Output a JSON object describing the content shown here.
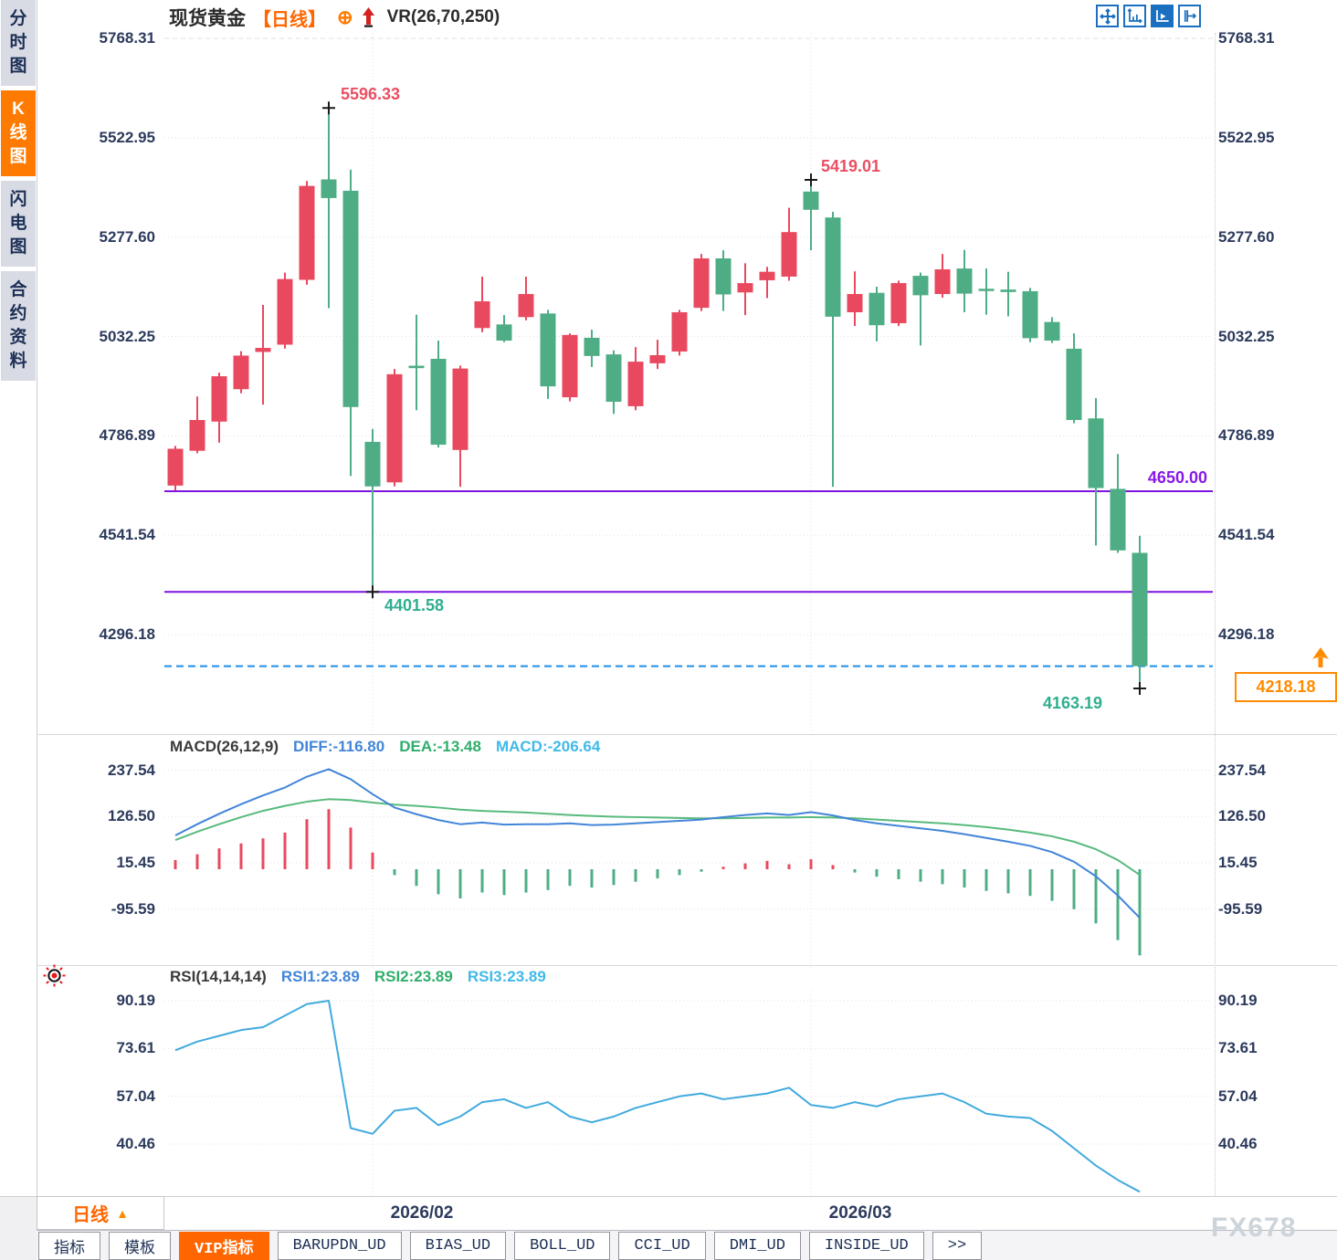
{
  "sidebar": {
    "items": [
      {
        "label": "分时图",
        "active": false
      },
      {
        "label": "K线图",
        "active": true
      },
      {
        "label": "闪电图",
        "active": false
      },
      {
        "label": "合约资料",
        "active": false
      }
    ]
  },
  "header": {
    "symbol": "现货黄金",
    "period_tag": "【日线】",
    "plus_icon": "⊕",
    "indicator": "VR(26,70,250)"
  },
  "toolbar": {
    "icons": [
      "pan-icon",
      "axis-scale-icon",
      "axis-autoscroll-icon",
      "shift-chart-icon"
    ],
    "active_index": 2
  },
  "annotations": {
    "high1": "5596.33",
    "high2": "5419.01",
    "low_mid": "4401.58",
    "low_final": "4163.19",
    "hline_upper": "4650.00",
    "price_badge": "4218.18"
  },
  "macd_header": {
    "name": "MACD(26,12,9)",
    "diff_label": "DIFF:-116.80",
    "dea_label": "DEA:-13.48",
    "macd_label": "MACD:-206.64"
  },
  "rsi_header": {
    "name": "RSI(14,14,14)",
    "rsi1_label": "RSI1:23.89",
    "rsi2_label": "RSI2:23.89",
    "rsi3_label": "RSI3:23.89"
  },
  "axes": {
    "main": [
      "5768.31",
      "5522.95",
      "5277.60",
      "5032.25",
      "4786.89",
      "4541.54",
      "4296.18"
    ],
    "macd": [
      "237.54",
      "126.50",
      "15.45",
      "-95.59"
    ],
    "rsi": [
      "90.19",
      "73.61",
      "57.04",
      "40.46"
    ]
  },
  "bottom": {
    "period_label": "日线",
    "period_arrow": "▲",
    "date_labels": [
      "2026/02",
      "2026/03"
    ],
    "tabs": [
      {
        "label": "指标",
        "active": false
      },
      {
        "label": "模板",
        "active": false
      },
      {
        "label": "VIP指标",
        "active": true
      },
      {
        "label": "BARUPDN_UD",
        "active": false
      },
      {
        "label": "BIAS_UD",
        "active": false
      },
      {
        "label": "BOLL_UD",
        "active": false
      },
      {
        "label": "CCI_UD",
        "active": false
      },
      {
        "label": "DMI_UD",
        "active": false
      },
      {
        "label": "INSIDE_UD",
        "active": false
      },
      {
        "label": ">>",
        "active": false
      }
    ]
  },
  "watermark": "FX678",
  "colors": {
    "up": "#e8495f",
    "down": "#4fad85",
    "support_line": "#7d14e0",
    "current_price_line": "#1d8fe8",
    "accent": "#ff6600",
    "diff_line": "#4285d8",
    "dea_line": "#58ba7d",
    "macd_text": "#41b9e8",
    "rsi_line": "#41aade",
    "annotation_red": "#ea4f63",
    "annotation_green": "#2fae8f",
    "badge": "#ff8b00",
    "grid": "#dfe0e6"
  },
  "chart_data": {
    "type": "candlestick",
    "panels": [
      "price",
      "MACD(26,12,9)",
      "RSI(14,14,14)"
    ],
    "x_labels": [
      "2026/02",
      "2026/03"
    ],
    "x_gridline_candles": [
      9,
      29
    ],
    "price": {
      "ylim": [
        4163.19,
        5768.31
      ],
      "grid_values": [
        5768.31,
        5522.95,
        5277.6,
        5032.25,
        4786.89,
        4541.54,
        4296.18
      ],
      "hlines": [
        4650.0,
        4401.58
      ],
      "current_price": 4218.18,
      "high_label_1": 5596.33,
      "high_label_2": 5419.01,
      "low_label_1": 4401.58,
      "low_label_2": 4163.19,
      "candles": [
        [
          4664,
          4762,
          4652,
          4755
        ],
        [
          4750,
          4884,
          4744,
          4826
        ],
        [
          4822,
          4943,
          4770,
          4934
        ],
        [
          4902,
          4996,
          4892,
          4985
        ],
        [
          4994,
          5110,
          4864,
          5004
        ],
        [
          5012,
          5190,
          5002,
          5174
        ],
        [
          5172,
          5416,
          5160,
          5404
        ],
        [
          5420,
          5596.33,
          5102,
          5374
        ],
        [
          5392,
          5444,
          4688,
          4858
        ],
        [
          4772,
          4804,
          4401.58,
          4662
        ],
        [
          4672,
          4952,
          4662,
          4939
        ],
        [
          4960,
          5086,
          4850,
          4954
        ],
        [
          4977,
          5022,
          4758,
          4765
        ],
        [
          4752,
          4960,
          4661,
          4953
        ],
        [
          5053,
          5180,
          5043,
          5119
        ],
        [
          5062,
          5085,
          5018,
          5022
        ],
        [
          5080,
          5180,
          5072,
          5137
        ],
        [
          5089,
          5098,
          4878,
          4909
        ],
        [
          4882,
          5040,
          4872,
          5036
        ],
        [
          5029,
          5049,
          4957,
          4984
        ],
        [
          4988,
          4998,
          4841,
          4871
        ],
        [
          4860,
          5006,
          4850,
          4970
        ],
        [
          4966,
          5024,
          4952,
          4986
        ],
        [
          4995,
          5098,
          4985,
          5092
        ],
        [
          5103,
          5236,
          5095,
          5225
        ],
        [
          5225,
          5245,
          5095,
          5136
        ],
        [
          5141,
          5213,
          5085,
          5164
        ],
        [
          5171,
          5204,
          5127,
          5192
        ],
        [
          5180,
          5350,
          5170,
          5290
        ],
        [
          5390,
          5419.01,
          5245,
          5345
        ],
        [
          5326,
          5340,
          4661,
          5081
        ],
        [
          5092,
          5193,
          5058,
          5137
        ],
        [
          5140,
          5155,
          5020,
          5060
        ],
        [
          5065,
          5170,
          5058,
          5164
        ],
        [
          5182,
          5190,
          5010,
          5134
        ],
        [
          5137,
          5236,
          5128,
          5198
        ],
        [
          5200,
          5246,
          5092,
          5138
        ],
        [
          5150,
          5200,
          5086,
          5146
        ],
        [
          5148,
          5192,
          5082,
          5142
        ],
        [
          5144,
          5152,
          5018,
          5028
        ],
        [
          5068,
          5080,
          5016,
          5022
        ],
        [
          5002,
          5040,
          4818,
          4826
        ],
        [
          4830,
          4880,
          4516,
          4658
        ],
        [
          4656,
          4742,
          4498,
          4504
        ],
        [
          4498,
          4540,
          4163.19,
          4218.18
        ]
      ],
      "markers": [
        {
          "candle": 7,
          "at": "high",
          "value": 5596.33
        },
        {
          "candle": 29,
          "at": "high",
          "value": 5419.01
        },
        {
          "candle": 9,
          "at": "low",
          "value": 4401.58
        },
        {
          "candle": 44,
          "at": "low",
          "value": 4163.19
        }
      ]
    },
    "macd": {
      "grid_values": [
        237.54,
        126.5,
        15.45,
        -95.59
      ],
      "diff": [
        81,
        108,
        133,
        156,
        177,
        196,
        222,
        240,
        216,
        180,
        148,
        132,
        118,
        108,
        112,
        107,
        108,
        108,
        110,
        106,
        107,
        110,
        113,
        116,
        119,
        125,
        130,
        134,
        130,
        137,
        129,
        118,
        110,
        104,
        98,
        92,
        84,
        75,
        66,
        56,
        41,
        18,
        -17,
        -63,
        -116.8
      ],
      "dea": [
        70,
        90,
        108,
        125,
        140,
        152,
        162,
        168,
        166,
        160,
        155,
        152,
        148,
        143,
        140,
        138,
        136,
        133,
        130,
        128,
        126,
        125,
        124,
        123,
        122,
        122,
        123,
        124,
        124,
        125,
        124,
        122,
        119,
        116,
        113,
        110,
        106,
        101,
        95,
        88,
        79,
        66,
        48,
        22,
        -13.48
      ],
      "hist": [
        22,
        36,
        50,
        62,
        74,
        88,
        120,
        144,
        100,
        40,
        -14,
        -40,
        -60,
        -70,
        -56,
        -62,
        -56,
        -50,
        -40,
        -44,
        -38,
        -30,
        -22,
        -14,
        -6,
        6,
        14,
        20,
        12,
        24,
        10,
        -8,
        -18,
        -24,
        -30,
        -36,
        -44,
        -52,
        -58,
        -64,
        -76,
        -96,
        -130,
        -170,
        -206.64
      ]
    },
    "rsi": {
      "grid_values": [
        90.19,
        73.61,
        57.04,
        40.46
      ],
      "values": [
        73,
        76,
        78,
        80,
        81,
        85,
        89,
        90.2,
        46,
        44,
        52,
        53,
        47,
        50,
        55,
        56,
        53,
        55,
        50,
        48,
        50,
        53,
        55,
        57,
        58,
        56,
        57,
        58,
        60,
        54,
        53,
        55,
        53.5,
        56,
        57,
        58,
        55,
        51,
        50,
        49.5,
        45,
        39,
        33,
        28,
        23.89
      ]
    }
  }
}
